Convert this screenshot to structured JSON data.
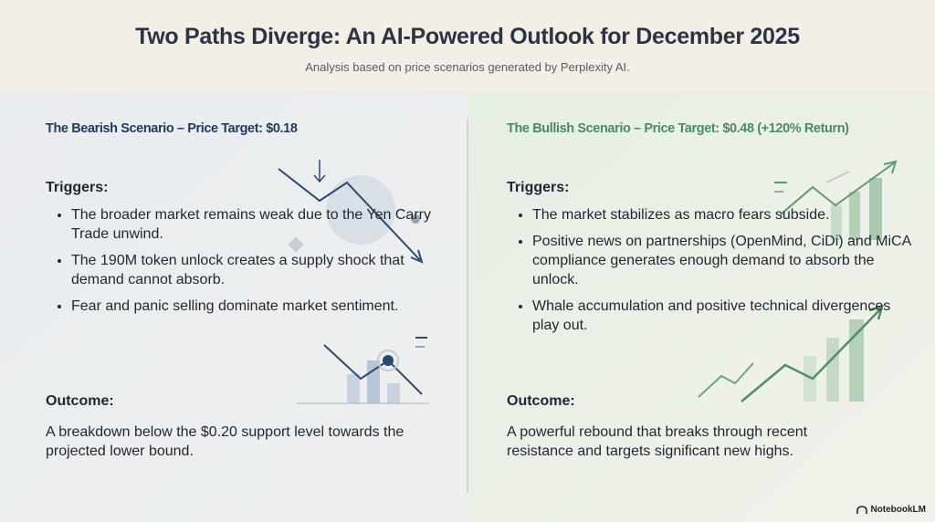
{
  "header": {
    "title": "Two Paths Diverge: An AI-Powered Outlook for December 2025",
    "subtitle": "Analysis based on price scenarios generated by Perplexity AI."
  },
  "columns": [
    {
      "heading": "The Bearish Scenario – Price Target: $0.18",
      "triggers_label": "Triggers:",
      "triggers": [
        "The broader market remains weak due to the Yen Carry Trade unwind.",
        "The 190M token unlock creates a supply shock that demand cannot absorb.",
        "Fear and panic selling dominate market sentiment."
      ],
      "outcome_label": "Outcome:",
      "outcome": "A breakdown below the $0.20 support level towards the projected lower bound."
    },
    {
      "heading": "The Bullish Scenario – Price Target: $0.48 (+120% Return)",
      "triggers_label": "Triggers:",
      "triggers": [
        "The market stabilizes as macro fears subside.",
        "Positive news on partnerships (OpenMind, CiDi) and MiCA compliance generates enough demand to absorb the unlock.",
        "Whale accumulation and positive technical divergences play out."
      ],
      "outcome_label": "Outcome:",
      "outcome": "A powerful rebound that breaks through recent resistance and targets significant new highs."
    }
  ],
  "watermark": "NotebookLM"
}
